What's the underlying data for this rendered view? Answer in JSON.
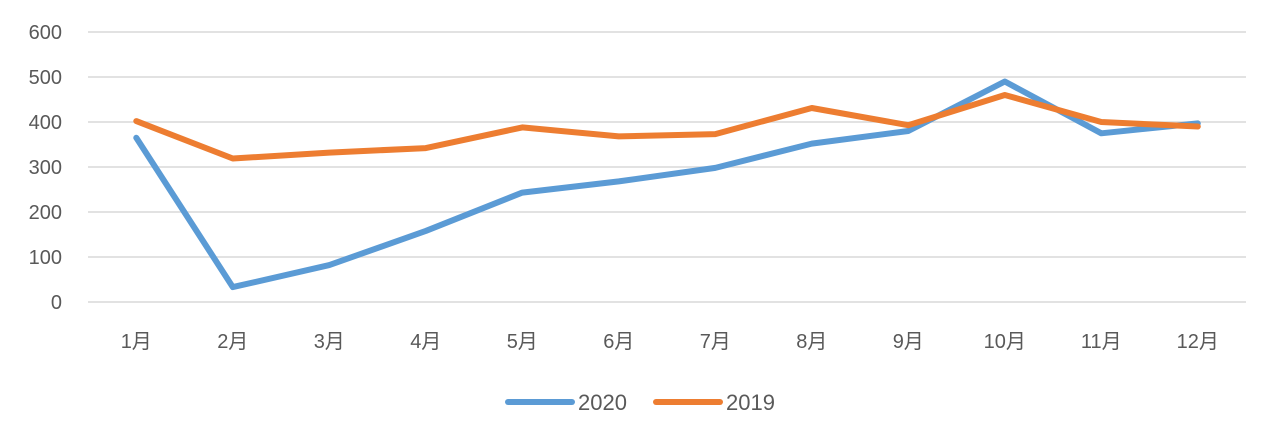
{
  "chart_data": {
    "type": "line",
    "title": "",
    "xlabel": "",
    "ylabel": "",
    "categories": [
      "1月",
      "2月",
      "3月",
      "4月",
      "5月",
      "6月",
      "7月",
      "8月",
      "9月",
      "10月",
      "11月",
      "12月"
    ],
    "ylim": [
      0,
      600
    ],
    "yticks": [
      0,
      100,
      200,
      300,
      400,
      500,
      600
    ],
    "grid": true,
    "legend_position": "bottom",
    "series": [
      {
        "name": "2020",
        "color": "#5B9BD5",
        "values": [
          365,
          33,
          82,
          158,
          243,
          268,
          298,
          352,
          380,
          490,
          375,
          397
        ]
      },
      {
        "name": "2019",
        "color": "#ED7D31",
        "values": [
          402,
          319,
          332,
          342,
          388,
          368,
          373,
          431,
          393,
          460,
          400,
          390
        ]
      }
    ]
  }
}
